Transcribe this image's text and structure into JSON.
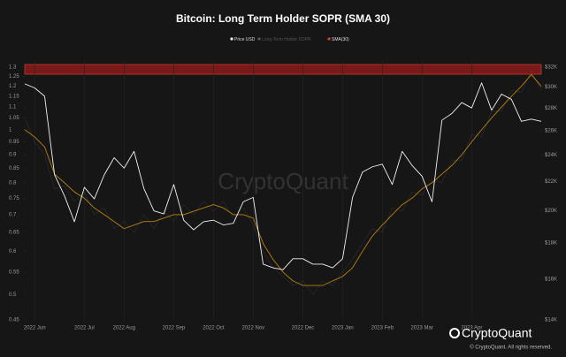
{
  "chart_data": {
    "type": "line",
    "title": "Bitcoin: Long Term Holder SOPR (SMA 30)",
    "watermark": "CryptoQuant",
    "brand": "CryptoQuant",
    "copyright": "© CryptoQuant. All rights reserved.",
    "categories": [
      null,
      "2022 Jun",
      null,
      null,
      null,
      null,
      "2022 Jul",
      null,
      null,
      null,
      "2022 Aug",
      null,
      null,
      null,
      null,
      "2022 Sep",
      null,
      null,
      null,
      "2022 Oct",
      null,
      null,
      null,
      "2022 Nov",
      null,
      null,
      null,
      null,
      "2022 Dec",
      null,
      null,
      null,
      "2023 Jan",
      null,
      null,
      null,
      "2023 Feb",
      null,
      null,
      null,
      "2023 Mar",
      null,
      null,
      null,
      null,
      "2023 Apr",
      null,
      null,
      null,
      null,
      null,
      null,
      null
    ],
    "series": [
      {
        "name": "Price USD",
        "color": "#f2f2f2",
        "axis": "y2",
        "values": [
          30300,
          29900,
          29100,
          22500,
          21000,
          19300,
          21600,
          20800,
          22500,
          23800,
          23000,
          24300,
          21500,
          20000,
          19800,
          21800,
          19400,
          18800,
          19300,
          19400,
          19100,
          19200,
          20600,
          20900,
          16800,
          16600,
          16500,
          17100,
          17100,
          16800,
          16800,
          16600,
          17100,
          20900,
          22700,
          23100,
          23300,
          21800,
          24300,
          23200,
          22400,
          20600,
          26900,
          27500,
          28500,
          28000,
          30400,
          27800,
          29300,
          28800,
          26800,
          27000,
          26800
        ]
      },
      {
        "name": "Long-Term Holder SOPR",
        "color": "#5a5a5a",
        "values": [
          1.05,
          0.95,
          0.9,
          0.78,
          0.79,
          0.74,
          0.77,
          0.7,
          0.72,
          0.66,
          0.68,
          0.65,
          0.7,
          0.66,
          0.71,
          0.68,
          0.73,
          0.7,
          0.74,
          0.71,
          0.74,
          0.69,
          0.72,
          0.67,
          0.6,
          0.56,
          0.54,
          0.52,
          0.53,
          0.5,
          0.53,
          0.52,
          0.55,
          0.58,
          0.62,
          0.66,
          0.65,
          0.72,
          0.71,
          0.77,
          0.76,
          0.81,
          0.8,
          0.88,
          0.88,
          0.98,
          0.97,
          1.08,
          1.08,
          1.18,
          1.17,
          1.28,
          1.18
        ]
      },
      {
        "name": "SMA(30)",
        "color": "#b8800f",
        "legend_color": "#d9442c",
        "values": [
          1.0,
          0.97,
          0.93,
          0.83,
          0.8,
          0.77,
          0.75,
          0.72,
          0.7,
          0.68,
          0.66,
          0.67,
          0.68,
          0.68,
          0.69,
          0.7,
          0.7,
          0.71,
          0.72,
          0.73,
          0.72,
          0.7,
          0.7,
          0.69,
          0.62,
          0.58,
          0.55,
          0.53,
          0.52,
          0.52,
          0.52,
          0.53,
          0.54,
          0.56,
          0.6,
          0.64,
          0.67,
          0.7,
          0.73,
          0.75,
          0.78,
          0.8,
          0.83,
          0.86,
          0.9,
          0.95,
          1.0,
          1.05,
          1.1,
          1.15,
          1.2,
          1.26,
          1.2
        ]
      }
    ],
    "ylim": [
      0.45,
      1.3
    ],
    "yticks": [
      0.45,
      0.5,
      0.55,
      0.6,
      0.65,
      0.7,
      0.75,
      0.8,
      0.85,
      0.9,
      0.95,
      1,
      1.05,
      1.1,
      1.15,
      1.2,
      1.25,
      1.3
    ],
    "ylog": true,
    "y2lim": [
      14000,
      32000
    ],
    "y2ticks": [
      {
        "value": 14000,
        "label": "$14K"
      },
      {
        "value": 16000,
        "label": "$16K"
      },
      {
        "value": 18000,
        "label": "$18K"
      },
      {
        "value": 20000,
        "label": "$20K"
      },
      {
        "value": 22000,
        "label": "$22K"
      },
      {
        "value": 24000,
        "label": "$24K"
      },
      {
        "value": 26000,
        "label": "$26K"
      },
      {
        "value": 28000,
        "label": "$28K"
      },
      {
        "value": 30000,
        "label": "$30K"
      },
      {
        "value": 32000,
        "label": "$32K"
      }
    ],
    "y2log": true,
    "grid": true,
    "legend": "top"
  }
}
